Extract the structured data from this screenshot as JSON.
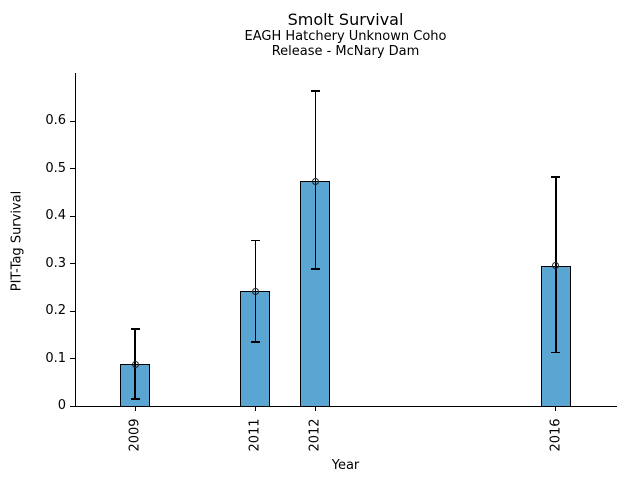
{
  "chart_data": {
    "type": "bar",
    "title": "Smolt Survival",
    "subtitle1": "EAGH Hatchery Unknown Coho",
    "subtitle2": "Release - McNary Dam",
    "xlabel": "Year",
    "ylabel": "PIT-Tag Survival",
    "categories": [
      2009,
      2011,
      2012,
      2016
    ],
    "values": [
      0.088,
      0.242,
      0.474,
      0.296
    ],
    "error_low": [
      0.015,
      0.135,
      0.289,
      0.113
    ],
    "error_high": [
      0.162,
      0.349,
      0.664,
      0.483
    ],
    "yticks": [
      0,
      0.1,
      0.2,
      0.3,
      0.4,
      0.5,
      0.6
    ],
    "ytick_labels": [
      "0",
      "0.1",
      "0.2",
      "0.3",
      "0.4",
      "0.5",
      "0.6"
    ],
    "xtick_labels": [
      "2009",
      "2011",
      "2012",
      "2016"
    ],
    "xlim": [
      2008,
      2017
    ],
    "ylim": [
      0,
      0.702
    ],
    "bar_width_years": 0.5,
    "bar_color": "#5BA5D2",
    "bar_edge_color": "#000000",
    "error_color": "#000000",
    "marker_style": "open-circle",
    "grid": false,
    "legend": null,
    "background": "#ffffff"
  }
}
